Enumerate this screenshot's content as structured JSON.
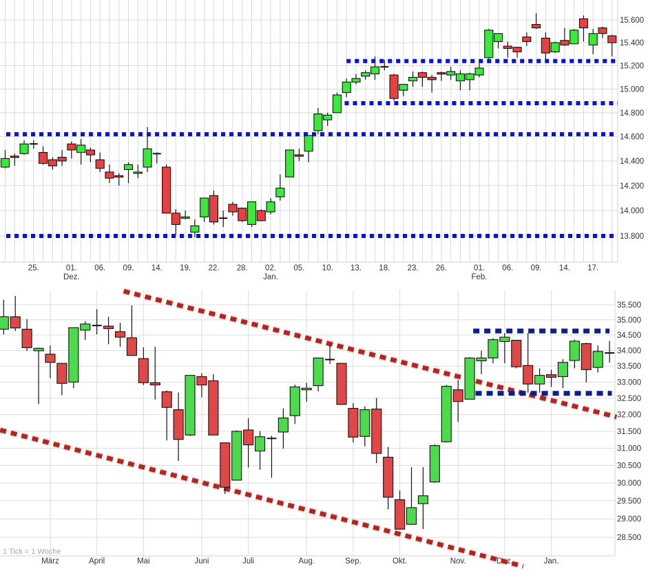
{
  "chart_data": [
    {
      "type": "candlestick",
      "period": "daily",
      "scale": "log",
      "grid": true,
      "ylim": [
        13.62,
        15.78
      ],
      "y_ticks": [
        "13.800",
        "14.000",
        "14.200",
        "14.400",
        "14.600",
        "14.800",
        "15.000",
        "15.200",
        "15.400",
        "15.600"
      ],
      "y_tick_values": [
        13.8,
        14.0,
        14.2,
        14.4,
        14.6,
        14.8,
        15.0,
        15.2,
        15.4,
        15.6
      ],
      "x_labels": [
        {
          "index": 3,
          "label": "25."
        },
        {
          "index": 7,
          "label": "01.",
          "sublabel": "Dez."
        },
        {
          "index": 10,
          "label": "06."
        },
        {
          "index": 13,
          "label": "09."
        },
        {
          "index": 16,
          "label": "14."
        },
        {
          "index": 19,
          "label": "19."
        },
        {
          "index": 22,
          "label": "22."
        },
        {
          "index": 25,
          "label": "28."
        },
        {
          "index": 28,
          "label": "02.",
          "sublabel": "Jan."
        },
        {
          "index": 31,
          "label": "05."
        },
        {
          "index": 34,
          "label": "10."
        },
        {
          "index": 37,
          "label": "13."
        },
        {
          "index": 40,
          "label": "18."
        },
        {
          "index": 43,
          "label": "23."
        },
        {
          "index": 46,
          "label": "26."
        },
        {
          "index": 50,
          "label": "01.",
          "sublabel": "Feb."
        },
        {
          "index": 53,
          "label": "06."
        },
        {
          "index": 56,
          "label": "09."
        },
        {
          "index": 59,
          "label": "14."
        },
        {
          "index": 62,
          "label": "17."
        }
      ],
      "ohlc": [
        [
          14.35,
          14.49,
          14.34,
          14.42
        ],
        [
          14.44,
          14.46,
          14.36,
          14.43
        ],
        [
          14.46,
          14.57,
          14.45,
          14.54
        ],
        [
          14.54,
          14.57,
          14.5,
          14.54
        ],
        [
          14.47,
          14.52,
          14.37,
          14.38
        ],
        [
          14.41,
          14.43,
          14.33,
          14.36
        ],
        [
          14.43,
          14.49,
          14.36,
          14.4
        ],
        [
          14.54,
          14.56,
          14.42,
          14.49
        ],
        [
          14.47,
          14.58,
          14.37,
          14.53
        ],
        [
          14.49,
          14.51,
          14.39,
          14.45
        ],
        [
          14.41,
          14.47,
          14.31,
          14.34
        ],
        [
          14.31,
          14.37,
          14.22,
          14.26
        ],
        [
          14.28,
          14.3,
          14.2,
          14.27
        ],
        [
          14.33,
          14.39,
          14.22,
          14.37
        ],
        [
          14.3,
          14.37,
          14.26,
          14.31
        ],
        [
          14.35,
          14.68,
          14.31,
          14.5
        ],
        [
          14.46,
          14.47,
          14.38,
          14.46
        ],
        [
          14.35,
          14.37,
          13.98,
          13.98
        ],
        [
          13.98,
          14.01,
          13.81,
          13.89
        ],
        [
          13.94,
          14.0,
          13.93,
          13.95
        ],
        [
          13.83,
          13.93,
          13.79,
          13.88
        ],
        [
          13.95,
          14.1,
          13.91,
          14.1
        ],
        [
          14.12,
          14.16,
          13.89,
          13.91
        ],
        [
          13.94,
          14.0,
          13.87,
          13.94
        ],
        [
          14.05,
          14.07,
          13.96,
          13.99
        ],
        [
          14.02,
          14.02,
          13.91,
          13.92
        ],
        [
          13.89,
          14.07,
          13.87,
          14.07
        ],
        [
          14.0,
          14.01,
          13.92,
          13.92
        ],
        [
          13.99,
          14.1,
          13.97,
          14.07
        ],
        [
          14.11,
          14.29,
          14.08,
          14.18
        ],
        [
          14.27,
          14.49,
          14.27,
          14.49
        ],
        [
          14.45,
          14.5,
          14.4,
          14.44
        ],
        [
          14.48,
          14.61,
          14.39,
          14.61
        ],
        [
          14.65,
          14.84,
          14.62,
          14.79
        ],
        [
          14.74,
          14.8,
          14.69,
          14.78
        ],
        [
          14.8,
          14.97,
          14.8,
          14.95
        ],
        [
          14.97,
          15.09,
          14.93,
          15.06
        ],
        [
          15.06,
          15.13,
          15.04,
          15.09
        ],
        [
          15.11,
          15.16,
          15.08,
          15.14
        ],
        [
          15.13,
          15.28,
          15.08,
          15.19
        ],
        [
          15.19,
          15.25,
          15.16,
          15.19
        ],
        [
          15.12,
          15.13,
          14.9,
          14.92
        ],
        [
          14.99,
          15.04,
          14.94,
          15.04
        ],
        [
          15.07,
          15.15,
          15.02,
          15.1
        ],
        [
          15.14,
          15.15,
          15.02,
          15.1
        ],
        [
          15.1,
          15.12,
          14.97,
          15.08
        ],
        [
          15.14,
          15.15,
          15.07,
          15.13
        ],
        [
          15.12,
          15.19,
          15.08,
          15.15
        ],
        [
          15.07,
          15.16,
          14.99,
          15.13
        ],
        [
          15.08,
          15.14,
          14.99,
          15.13
        ],
        [
          15.12,
          15.23,
          15.1,
          15.18
        ],
        [
          15.27,
          15.52,
          15.26,
          15.51
        ],
        [
          15.41,
          15.48,
          15.35,
          15.48
        ],
        [
          15.37,
          15.41,
          15.27,
          15.35
        ],
        [
          15.36,
          15.36,
          15.27,
          15.32
        ],
        [
          15.45,
          15.49,
          15.37,
          15.41
        ],
        [
          15.56,
          15.66,
          15.52,
          15.53
        ],
        [
          15.44,
          15.49,
          15.25,
          15.31
        ],
        [
          15.32,
          15.41,
          15.31,
          15.4
        ],
        [
          15.42,
          15.53,
          15.37,
          15.38
        ],
        [
          15.39,
          15.52,
          15.39,
          15.51
        ],
        [
          15.61,
          15.64,
          15.41,
          15.53
        ],
        [
          15.38,
          15.52,
          15.3,
          15.48
        ],
        [
          15.53,
          15.54,
          15.44,
          15.48
        ],
        [
          15.46,
          15.47,
          15.28,
          15.4
        ]
      ],
      "horizontal_lines": [
        {
          "value": 15.24,
          "from_index": 36,
          "color": "#0a10e0",
          "style": "dotted"
        },
        {
          "value": 14.88,
          "from_index": 35.8,
          "color": "#0a10e0",
          "style": "dotted"
        },
        {
          "value": 14.62,
          "from_index": 0,
          "color": "#0a10e0",
          "style": "dotted"
        },
        {
          "value": 13.8,
          "from_index": 0,
          "color": "#0a10e0",
          "style": "dotted"
        }
      ],
      "colors": {
        "up": "#3de83d",
        "down": "#e84040",
        "grid": "#d9d9d9"
      }
    },
    {
      "type": "candlestick",
      "period": "weekly",
      "scale": "log",
      "grid": true,
      "note": "1 Tick = 1 Woche",
      "y_ticks": [
        "28.500",
        "29.000",
        "29.500",
        "30.000",
        "30.500",
        "31.000",
        "31.500",
        "32.000",
        "32.500",
        "33.000",
        "33.500",
        "34.000",
        "34.500",
        "35.000",
        "35.500"
      ],
      "y_tick_values": [
        28.5,
        29,
        29.5,
        30,
        30.5,
        31,
        31.5,
        32,
        32.5,
        33,
        33.5,
        34,
        34.5,
        35,
        35.5
      ],
      "x_labels": [
        {
          "index": 4,
          "label": "März"
        },
        {
          "index": 8,
          "label": "April"
        },
        {
          "index": 12,
          "label": "Mai"
        },
        {
          "index": 17,
          "label": "Juni"
        },
        {
          "index": 21,
          "label": "Juli"
        },
        {
          "index": 26,
          "label": "Aug."
        },
        {
          "index": 30,
          "label": "Sep."
        },
        {
          "index": 34,
          "label": "Okt."
        },
        {
          "index": 39,
          "label": "Nov."
        },
        {
          "index": 43,
          "label": "Dez."
        },
        {
          "index": 47,
          "label": "Jan."
        }
      ],
      "ohlc": [
        [
          34.69,
          35.67,
          34.52,
          35.1
        ],
        [
          35.1,
          35.8,
          34.63,
          34.73
        ],
        [
          34.69,
          35.02,
          33.98,
          34.09
        ],
        [
          33.99,
          34.09,
          32.32,
          34.07
        ],
        [
          33.88,
          34.16,
          33.12,
          33.62
        ],
        [
          33.59,
          33.59,
          32.59,
          32.96
        ],
        [
          33.0,
          34.74,
          32.81,
          34.74
        ],
        [
          34.66,
          34.95,
          34.34,
          34.86
        ],
        [
          34.81,
          35.35,
          34.52,
          34.81
        ],
        [
          34.79,
          35.1,
          34.2,
          34.71
        ],
        [
          34.61,
          34.9,
          34.12,
          34.43
        ],
        [
          34.41,
          35.48,
          33.84,
          33.84
        ],
        [
          33.74,
          34.1,
          32.91,
          32.98
        ],
        [
          32.98,
          34.12,
          32.46,
          32.91
        ],
        [
          32.7,
          32.74,
          31.23,
          32.22
        ],
        [
          32.15,
          32.68,
          30.63,
          31.26
        ],
        [
          31.39,
          33.21,
          31.36,
          33.21
        ],
        [
          33.17,
          33.28,
          32.53,
          32.91
        ],
        [
          33.04,
          33.25,
          31.39,
          31.39
        ],
        [
          31.16,
          31.16,
          29.69,
          29.88
        ],
        [
          30.08,
          31.53,
          30.08,
          31.5
        ],
        [
          31.54,
          31.89,
          30.44,
          31.1
        ],
        [
          30.92,
          31.51,
          30.38,
          31.34
        ],
        [
          31.29,
          31.37,
          30.15,
          31.29
        ],
        [
          31.48,
          32.19,
          30.99,
          31.9
        ],
        [
          31.97,
          32.92,
          31.72,
          32.85
        ],
        [
          32.76,
          32.98,
          32.39,
          32.81
        ],
        [
          32.89,
          33.76,
          32.71,
          33.76
        ],
        [
          33.71,
          34.18,
          33.57,
          33.71
        ],
        [
          33.59,
          33.59,
          32.31,
          32.31
        ],
        [
          32.19,
          32.35,
          31.17,
          31.33
        ],
        [
          31.35,
          32.25,
          31.05,
          32.15
        ],
        [
          32.17,
          32.51,
          30.57,
          30.85
        ],
        [
          30.74,
          31.04,
          29.26,
          29.6
        ],
        [
          29.53,
          29.79,
          28.72,
          28.72
        ],
        [
          28.85,
          30.45,
          28.85,
          29.31
        ],
        [
          29.42,
          30.45,
          28.72,
          29.64
        ],
        [
          30.03,
          31.12,
          30.01,
          31.08
        ],
        [
          31.19,
          32.91,
          31.17,
          32.87
        ],
        [
          32.76,
          33.06,
          31.78,
          32.4
        ],
        [
          32.47,
          33.79,
          32.47,
          33.76
        ],
        [
          33.67,
          33.99,
          33.25,
          33.76
        ],
        [
          33.76,
          34.4,
          33.59,
          34.35
        ],
        [
          34.29,
          34.56,
          33.59,
          34.43
        ],
        [
          34.33,
          34.33,
          33.43,
          33.48
        ],
        [
          33.52,
          34.56,
          32.67,
          32.94
        ],
        [
          32.94,
          33.43,
          32.67,
          33.21
        ],
        [
          33.23,
          33.39,
          32.85,
          33.15
        ],
        [
          33.17,
          33.72,
          32.81,
          33.62
        ],
        [
          33.68,
          34.35,
          33.43,
          34.3
        ],
        [
          34.22,
          34.25,
          32.99,
          33.39
        ],
        [
          33.46,
          34.16,
          33.3,
          33.97
        ],
        [
          33.92,
          34.31,
          33.61,
          33.92
        ]
      ],
      "trend_lines": [
        {
          "from": [
            10.3,
            35.96
          ],
          "to": [
            52.6,
            31.93
          ],
          "color": "#b3261e",
          "style": "dotted"
        },
        {
          "from": [
            -0.3,
            31.54
          ],
          "to": [
            44.6,
            27.73
          ],
          "color": "#b3261e",
          "style": "dotted"
        }
      ],
      "horizontal_lines": [
        {
          "value": 34.63,
          "from_index": 40.3,
          "to_index": 52,
          "color": "#0c1f8c",
          "style": "dotted"
        },
        {
          "value": 32.65,
          "from_index": 40.5,
          "to_index": 52.2,
          "color": "#0c1f8c",
          "style": "dotted"
        }
      ],
      "colors": {
        "up": "#4ddb4d",
        "down": "#e04848",
        "grid": "#dcdcdc"
      }
    }
  ]
}
